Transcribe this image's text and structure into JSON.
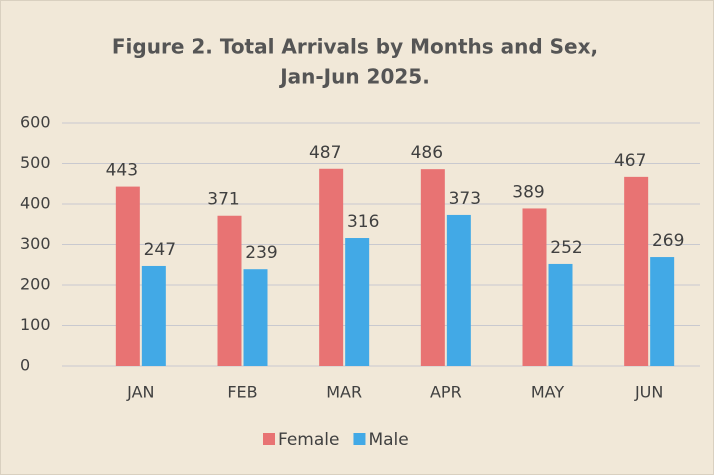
{
  "chart_data": {
    "type": "bar",
    "title": [
      "Figure 2. Total Arrivals by Months and Sex,",
      "Jan-Jun 2025."
    ],
    "categories": [
      "JAN",
      "FEB",
      "MAR",
      "APR",
      "MAY",
      "JUN"
    ],
    "series": [
      {
        "name": "Female",
        "color": "#e87373",
        "values": [
          443,
          371,
          487,
          486,
          389,
          467
        ]
      },
      {
        "name": "Male",
        "color": "#42a9e6",
        "values": [
          247,
          239,
          316,
          373,
          252,
          269
        ]
      }
    ],
    "ylim": [
      0,
      600
    ],
    "yticks": [
      0,
      100,
      200,
      300,
      400,
      500,
      600
    ],
    "grid": true,
    "legend": "bottom"
  }
}
